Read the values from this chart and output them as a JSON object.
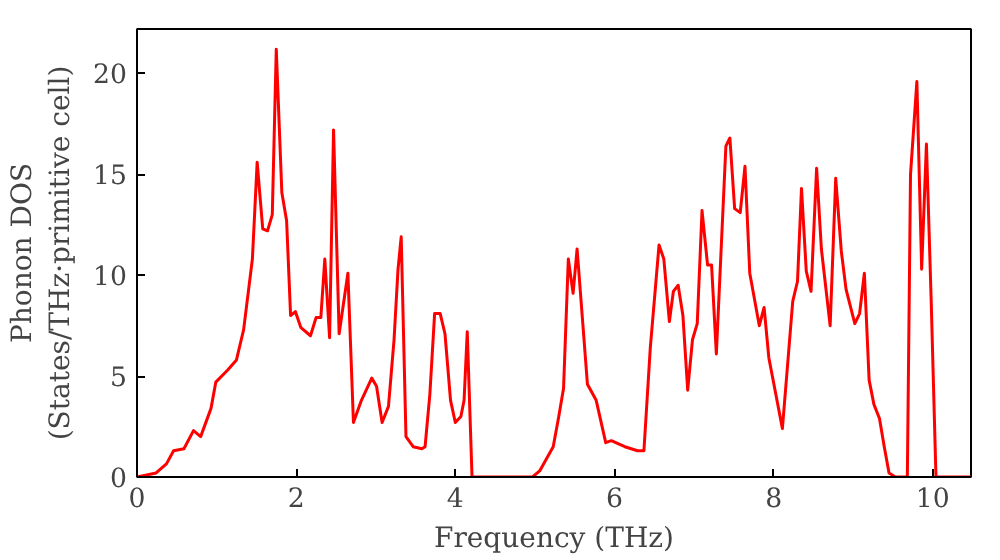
{
  "chart_data": {
    "type": "line",
    "xlabel": "Frequency (THz)",
    "ylabel": "Phonon DOS\n(States/THz·primitive cell)",
    "xlim": [
      0,
      10.48
    ],
    "ylim": [
      0,
      22.2
    ],
    "xticks": [
      0,
      2,
      4,
      6,
      8,
      10
    ],
    "yticks": [
      0,
      5,
      10,
      15,
      20
    ],
    "grid": false,
    "series": [
      {
        "color": "#ff0000",
        "x": [
          0,
          0.24,
          0.37,
          0.46,
          0.59,
          0.71,
          0.8,
          0.93,
          0.99,
          1.14,
          1.25,
          1.34,
          1.45,
          1.51,
          1.58,
          1.64,
          1.7,
          1.75,
          1.82,
          1.88,
          1.93,
          1.99,
          2.06,
          2.18,
          2.25,
          2.31,
          2.36,
          2.42,
          2.47,
          2.54,
          2.65,
          2.72,
          2.82,
          2.95,
          3.01,
          3.08,
          3.16,
          3.23,
          3.28,
          3.32,
          3.38,
          3.47,
          3.58,
          3.62,
          3.68,
          3.74,
          3.81,
          3.87,
          3.94,
          4.0,
          4.07,
          4.11,
          4.15,
          4.21,
          4.97,
          5.06,
          5.23,
          5.3,
          5.36,
          5.42,
          5.48,
          5.53,
          5.6,
          5.66,
          5.77,
          5.89,
          5.96,
          6.13,
          6.29,
          6.37,
          6.45,
          6.56,
          6.62,
          6.69,
          6.74,
          6.8,
          6.86,
          6.92,
          6.98,
          7.04,
          7.1,
          7.17,
          7.22,
          7.28,
          7.4,
          7.45,
          7.51,
          7.58,
          7.64,
          7.7,
          7.82,
          7.88,
          7.94,
          8.11,
          8.24,
          8.3,
          8.35,
          8.41,
          8.47,
          8.54,
          8.6,
          8.71,
          8.78,
          8.85,
          8.91,
          9.02,
          9.08,
          9.14,
          9.2,
          9.26,
          9.33,
          9.39,
          9.45,
          9.53,
          9.68,
          9.72,
          9.8,
          9.86,
          9.92,
          9.98,
          10.04,
          10.48
        ],
        "values": [
          0,
          0.2,
          0.65,
          1.3,
          1.4,
          2.3,
          2.0,
          3.4,
          4.7,
          5.3,
          5.8,
          7.3,
          10.8,
          15.6,
          12.3,
          12.2,
          13.0,
          21.2,
          14.1,
          12.7,
          8.0,
          8.2,
          7.4,
          7.0,
          7.9,
          7.9,
          10.8,
          6.9,
          17.2,
          7.1,
          10.1,
          2.7,
          3.8,
          4.9,
          4.5,
          2.7,
          3.5,
          6.8,
          10.3,
          11.9,
          2.0,
          1.5,
          1.4,
          1.5,
          4.1,
          8.1,
          8.1,
          7.1,
          3.8,
          2.7,
          3.0,
          3.8,
          7.2,
          0,
          0,
          0.3,
          1.5,
          3.0,
          4.4,
          10.8,
          9.1,
          11.3,
          7.7,
          4.6,
          3.8,
          1.7,
          1.8,
          1.5,
          1.3,
          1.3,
          6.4,
          11.5,
          10.8,
          7.7,
          9.2,
          9.5,
          8.0,
          4.3,
          6.8,
          7.6,
          13.2,
          10.5,
          10.5,
          6.1,
          16.4,
          16.8,
          13.3,
          13.1,
          15.4,
          10.1,
          7.5,
          8.4,
          5.9,
          2.4,
          8.7,
          9.7,
          14.3,
          10.2,
          9.2,
          15.3,
          11.3,
          7.5,
          14.8,
          11.2,
          9.3,
          7.6,
          8.1,
          10.1,
          4.8,
          3.6,
          2.9,
          1.5,
          0.2,
          0,
          0,
          15.0,
          19.6,
          10.3,
          16.5,
          8.7,
          0,
          0
        ]
      }
    ]
  }
}
